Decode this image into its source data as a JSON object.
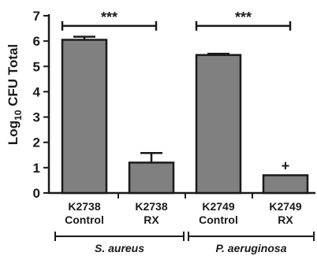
{
  "chart_data": {
    "type": "bar",
    "categories": [
      {
        "line1": "K2738",
        "line2": "Control"
      },
      {
        "line1": "K2738",
        "line2": "RX"
      },
      {
        "line1": "K2749",
        "line2": "Control"
      },
      {
        "line1": "K2749",
        "line2": "RX"
      }
    ],
    "values": [
      6.05,
      1.2,
      5.45,
      0.7
    ],
    "error_upper": [
      0.12,
      0.38,
      0.05,
      0
    ],
    "ylabel_pre": "Log",
    "ylabel_sub": "10",
    "ylabel_post": " CFU Total",
    "ylim": [
      0,
      7
    ],
    "yticks": [
      "0",
      "1",
      "2",
      "3",
      "4",
      "5",
      "6",
      "7"
    ],
    "groups": [
      {
        "label": "S. aureus",
        "categories": [
          0,
          1
        ]
      },
      {
        "label": "P. aeruginosa",
        "categories": [
          2,
          3
        ]
      }
    ],
    "significance": [
      {
        "from": 0,
        "to": 1,
        "label": "***",
        "y": 6.6
      },
      {
        "from": 2,
        "to": 3,
        "label": "***",
        "y": 6.6
      }
    ],
    "annotations": [
      {
        "category": 3,
        "label": "+"
      }
    ],
    "colors": {
      "bar": "#808080",
      "edge": "#1a1a1a",
      "axis": "#1a1a1a"
    },
    "legend": "none",
    "grid": false
  }
}
